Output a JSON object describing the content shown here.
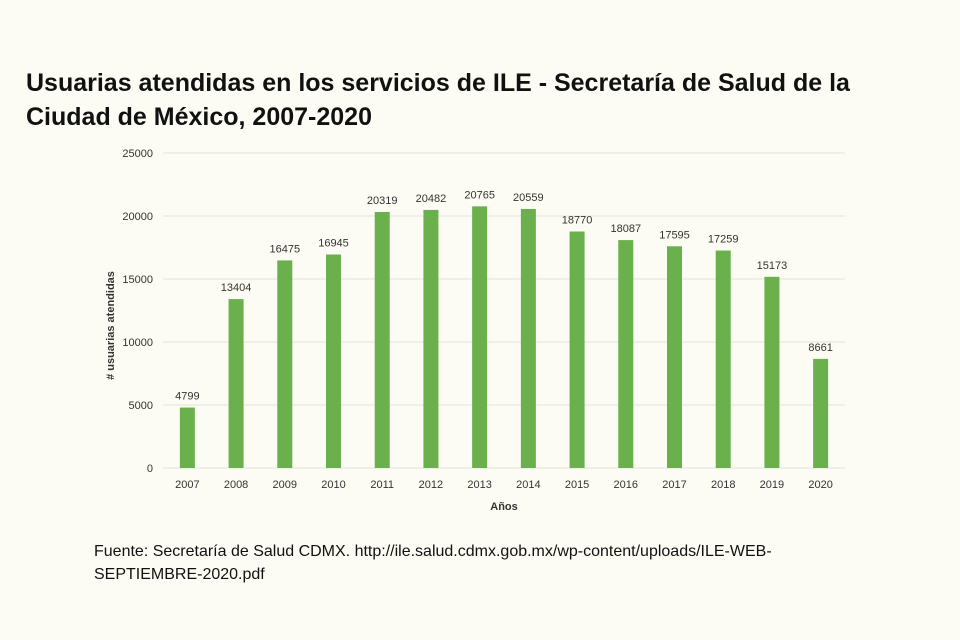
{
  "title": "Usuarias atendidas en los servicios de ILE - Secretaría de Salud de la Ciudad de México, 2007-2020",
  "source": "Fuente: Secretaría de Salud CDMX. http://ile.salud.cdmx.gob.mx/wp-content/uploads/ILE-WEB-SEPTIEMBRE-2020.pdf",
  "colors": {
    "bar": "#6ab04c",
    "grid": "#e2e2da",
    "text": "#333333"
  },
  "chart_data": {
    "type": "bar",
    "title": "Usuarias atendidas en los servicios de ILE - Secretaría de Salud de la Ciudad de México, 2007-2020",
    "xlabel": "Años",
    "ylabel": "# usuarias atendidas",
    "ylim": [
      0,
      25000
    ],
    "yticks": [
      0,
      5000,
      10000,
      15000,
      20000,
      25000
    ],
    "grid": true,
    "categories": [
      "2007",
      "2008",
      "2009",
      "2010",
      "2011",
      "2012",
      "2013",
      "2014",
      "2015",
      "2016",
      "2017",
      "2018",
      "2019",
      "2020"
    ],
    "values": [
      4799,
      13404,
      16475,
      16945,
      20319,
      20482,
      20765,
      20559,
      18770,
      18087,
      17595,
      17259,
      15173,
      8661
    ]
  }
}
